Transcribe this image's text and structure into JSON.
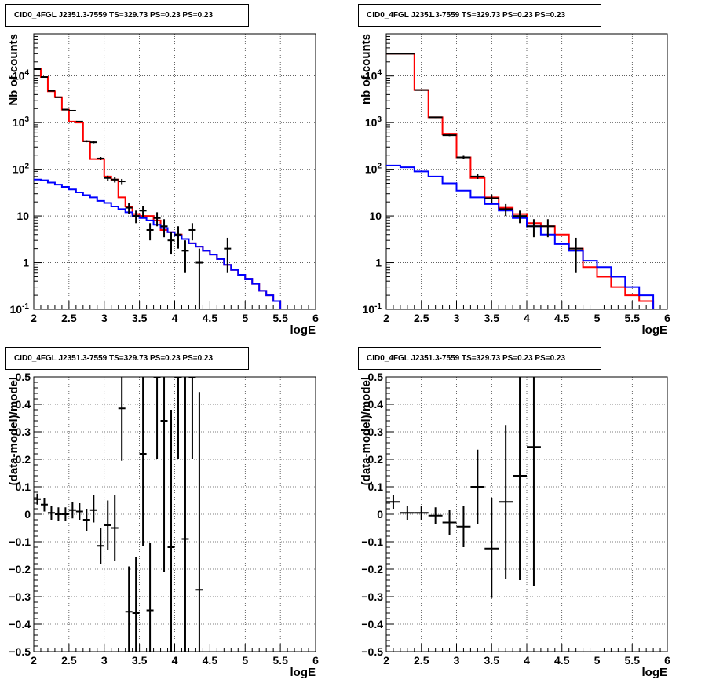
{
  "chart_data": [
    {
      "type": "line",
      "title": "CID0_4FGL J2351.3-7559 TS=329.73 PS=0.23 PS=0.23",
      "xlabel": "logE",
      "ylabel": "Nb of counts",
      "xlim": [
        2,
        6
      ],
      "ylim": [
        0.1,
        80000
      ],
      "yscale": "log",
      "grid": true,
      "x_ticks": [
        "2",
        "2.5",
        "3",
        "3.5",
        "4",
        "4.5",
        "5",
        "5.5",
        "6"
      ],
      "y_ticks": [
        "10",
        "1"
      ],
      "y_ticks_sci": [
        {
          "base": "10",
          "exp": "4"
        },
        {
          "base": "10",
          "exp": "3"
        },
        {
          "base": "10",
          "exp": "2"
        },
        {
          "base": "10",
          "exp": "-1"
        }
      ],
      "series": [
        {
          "kind": "step",
          "color": "#ff0000",
          "edges": [
            2.0,
            2.1,
            2.2,
            2.3,
            2.4,
            2.5,
            2.6,
            2.7,
            2.8,
            2.9,
            3.0,
            3.1,
            3.2,
            3.3,
            3.4,
            3.5,
            3.6,
            3.7,
            3.8,
            3.9,
            4.0,
            4.1,
            4.2,
            4.3,
            4.4,
            4.5,
            4.6,
            4.7,
            4.8,
            4.9,
            5.0,
            5.1,
            5.2,
            5.3,
            5.4,
            5.5,
            5.6,
            5.7,
            5.8,
            5.9,
            6.0
          ],
          "values": [
            14000,
            9500,
            4700,
            3500,
            1900,
            1050,
            1000,
            400,
            165,
            165,
            70,
            60,
            25,
            16,
            11,
            10,
            10,
            8,
            5,
            4.5,
            4,
            3.2,
            2.6,
            2.2,
            1.8,
            1.5,
            1.2,
            0.9,
            0.7,
            0.55,
            0.45,
            0.35,
            0.25,
            0.2,
            0.15,
            0.1,
            0.1,
            0.1,
            0.1,
            0.1
          ]
        },
        {
          "kind": "step",
          "color": "#0000ff",
          "edges": [
            2.0,
            2.1,
            2.2,
            2.3,
            2.4,
            2.5,
            2.6,
            2.7,
            2.8,
            2.9,
            3.0,
            3.1,
            3.2,
            3.3,
            3.4,
            3.5,
            3.6,
            3.7,
            3.8,
            3.9,
            4.0,
            4.1,
            4.2,
            4.3,
            4.4,
            4.5,
            4.6,
            4.7,
            4.8,
            4.9,
            5.0,
            5.1,
            5.2,
            5.3,
            5.4,
            5.5,
            5.6,
            5.7,
            5.8,
            5.9,
            6.0
          ],
          "values": [
            60,
            58,
            52,
            47,
            42,
            37,
            32,
            28,
            25,
            21,
            19,
            16,
            14,
            12,
            10,
            9,
            8,
            6.5,
            5.5,
            4.5,
            3.8,
            3.2,
            2.6,
            2.2,
            1.8,
            1.5,
            1.2,
            0.9,
            0.7,
            0.55,
            0.45,
            0.35,
            0.25,
            0.2,
            0.15,
            0.1,
            0.1,
            0.1,
            0.1,
            0.1
          ]
        },
        {
          "kind": "errorbar",
          "color": "#000000",
          "points": [
            {
              "x": 2.05,
              "y": 14000,
              "lo": 13800,
              "hi": 14200
            },
            {
              "x": 2.15,
              "y": 9500,
              "lo": 9300,
              "hi": 9700
            },
            {
              "x": 2.25,
              "y": 4800,
              "lo": 4700,
              "hi": 4900
            },
            {
              "x": 2.35,
              "y": 3500,
              "lo": 3440,
              "hi": 3560
            },
            {
              "x": 2.45,
              "y": 1900,
              "lo": 1850,
              "hi": 1950
            },
            {
              "x": 2.55,
              "y": 1800,
              "lo": 1750,
              "hi": 1850
            },
            {
              "x": 2.65,
              "y": 1050,
              "lo": 1020,
              "hi": 1080
            },
            {
              "x": 2.75,
              "y": 400,
              "lo": 380,
              "hi": 420
            },
            {
              "x": 2.85,
              "y": 380,
              "lo": 360,
              "hi": 400
            },
            {
              "x": 2.95,
              "y": 170,
              "lo": 157,
              "hi": 183
            },
            {
              "x": 3.05,
              "y": 65,
              "lo": 57,
              "hi": 73
            },
            {
              "x": 3.15,
              "y": 60,
              "lo": 52,
              "hi": 68
            },
            {
              "x": 3.25,
              "y": 55,
              "lo": 48,
              "hi": 62
            },
            {
              "x": 3.35,
              "y": 15,
              "lo": 11,
              "hi": 19
            },
            {
              "x": 3.45,
              "y": 10,
              "lo": 7,
              "hi": 13
            },
            {
              "x": 3.55,
              "y": 13,
              "lo": 9.5,
              "hi": 16.5
            },
            {
              "x": 3.65,
              "y": 5,
              "lo": 3,
              "hi": 7
            },
            {
              "x": 3.75,
              "y": 9,
              "lo": 6,
              "hi": 12
            },
            {
              "x": 3.85,
              "y": 6,
              "lo": 3.5,
              "hi": 8.5
            },
            {
              "x": 3.95,
              "y": 3,
              "lo": 1.5,
              "hi": 4.5
            },
            {
              "x": 4.05,
              "y": 4,
              "lo": 2,
              "hi": 6
            },
            {
              "x": 4.15,
              "y": 1.8,
              "lo": 0.6,
              "hi": 3.0
            },
            {
              "x": 4.25,
              "y": 5,
              "lo": 3,
              "hi": 7
            },
            {
              "x": 4.35,
              "y": 1,
              "lo": 0.1,
              "hi": 2
            },
            {
              "x": 4.75,
              "y": 2,
              "lo": 0.6,
              "hi": 3.4
            }
          ]
        }
      ]
    },
    {
      "type": "line",
      "title": "CID0_4FGL J2351.3-7559 TS=329.73 PS=0.23 PS=0.23",
      "xlabel": "logE",
      "ylabel": "nb of counts",
      "xlim": [
        2,
        6
      ],
      "ylim": [
        0.1,
        80000
      ],
      "yscale": "log",
      "grid": true,
      "x_ticks": [
        "2",
        "2.5",
        "3",
        "3.5",
        "4",
        "4.5",
        "5",
        "5.5",
        "6"
      ],
      "y_ticks": [
        "10",
        "1"
      ],
      "y_ticks_sci": [
        {
          "base": "10",
          "exp": "4"
        },
        {
          "base": "10",
          "exp": "3"
        },
        {
          "base": "10",
          "exp": "2"
        },
        {
          "base": "10",
          "exp": "-1"
        }
      ],
      "series": [
        {
          "kind": "step",
          "color": "#ff0000",
          "edges": [
            2.0,
            2.2,
            2.4,
            2.6,
            2.8,
            3.0,
            3.2,
            3.4,
            3.6,
            3.8,
            4.0,
            4.2,
            4.4,
            4.6,
            4.8,
            5.0,
            5.2,
            5.4,
            5.6,
            5.8,
            6.0
          ],
          "values": [
            30000,
            30000,
            5000,
            1300,
            560,
            180,
            65,
            25,
            15,
            11,
            7,
            6,
            4,
            2,
            0.8,
            0.5,
            0.3,
            0.2,
            0.15,
            0.1
          ]
        },
        {
          "kind": "step",
          "color": "#0000ff",
          "edges": [
            2.0,
            2.2,
            2.4,
            2.6,
            2.8,
            3.0,
            3.2,
            3.4,
            3.6,
            3.8,
            4.0,
            4.2,
            4.4,
            4.6,
            4.8,
            5.0,
            5.2,
            5.4,
            5.6,
            5.8,
            6.0
          ],
          "values": [
            120,
            110,
            90,
            70,
            50,
            35,
            25,
            18,
            13,
            9,
            6,
            4,
            2.5,
            1.8,
            1.1,
            0.8,
            0.5,
            0.3,
            0.2,
            0.1
          ]
        },
        {
          "kind": "errorbar",
          "color": "#000000",
          "points": [
            {
              "x": 2.1,
              "y": 30000,
              "lo": 29800,
              "hi": 30200
            },
            {
              "x": 2.3,
              "y": 30000,
              "lo": 29900,
              "hi": 30100
            },
            {
              "x": 2.5,
              "y": 5000,
              "lo": 4930,
              "hi": 5070
            },
            {
              "x": 2.7,
              "y": 1300,
              "lo": 1260,
              "hi": 1340
            },
            {
              "x": 2.9,
              "y": 540,
              "lo": 515,
              "hi": 565
            },
            {
              "x": 3.1,
              "y": 180,
              "lo": 166,
              "hi": 194
            },
            {
              "x": 3.3,
              "y": 70,
              "lo": 62,
              "hi": 78
            },
            {
              "x": 3.5,
              "y": 24,
              "lo": 19,
              "hi": 29
            },
            {
              "x": 3.7,
              "y": 14,
              "lo": 10,
              "hi": 18
            },
            {
              "x": 3.9,
              "y": 10,
              "lo": 7,
              "hi": 13
            },
            {
              "x": 4.1,
              "y": 6,
              "lo": 3.5,
              "hi": 8.5
            },
            {
              "x": 4.3,
              "y": 6,
              "lo": 3.5,
              "hi": 8.5
            },
            {
              "x": 4.7,
              "y": 2,
              "lo": 0.6,
              "hi": 3.4
            }
          ]
        }
      ]
    },
    {
      "type": "scatter",
      "title": "CID0_4FGL J2351.3-7559 TS=329.73 PS=0.23 PS=0.23",
      "xlabel": "logE",
      "ylabel": "(data-model)/model",
      "xlim": [
        2,
        6
      ],
      "ylim": [
        -0.5,
        0.5
      ],
      "grid": true,
      "x_ticks": [
        "2",
        "2.5",
        "3",
        "3.5",
        "4",
        "4.5",
        "5",
        "5.5",
        "6"
      ],
      "y_ticks": [
        "0.5",
        "0.4",
        "0.3",
        "0.2",
        "0.1",
        "0",
        "−0.1",
        "−0.2",
        "−0.3",
        "−0.4",
        "−0.5"
      ],
      "series": [
        {
          "kind": "errorbar",
          "color": "#000000",
          "points": [
            {
              "x": 2.05,
              "y": 0.055,
              "lo": 0.035,
              "hi": 0.075
            },
            {
              "x": 2.15,
              "y": 0.035,
              "lo": 0.01,
              "hi": 0.06
            },
            {
              "x": 2.25,
              "y": 0.005,
              "lo": -0.02,
              "hi": 0.03
            },
            {
              "x": 2.35,
              "y": 0.0,
              "lo": -0.025,
              "hi": 0.025
            },
            {
              "x": 2.45,
              "y": 0.0,
              "lo": -0.025,
              "hi": 0.025
            },
            {
              "x": 2.55,
              "y": 0.015,
              "lo": -0.015,
              "hi": 0.045
            },
            {
              "x": 2.65,
              "y": 0.01,
              "lo": -0.02,
              "hi": 0.04
            },
            {
              "x": 2.75,
              "y": -0.02,
              "lo": -0.06,
              "hi": 0.02
            },
            {
              "x": 2.85,
              "y": 0.015,
              "lo": -0.03,
              "hi": 0.07
            },
            {
              "x": 2.95,
              "y": -0.115,
              "lo": -0.18,
              "hi": -0.05
            },
            {
              "x": 3.05,
              "y": -0.04,
              "lo": -0.13,
              "hi": 0.05
            },
            {
              "x": 3.15,
              "y": -0.05,
              "lo": -0.17,
              "hi": 0.07
            },
            {
              "x": 3.25,
              "y": 0.385,
              "lo": 0.195,
              "hi": 0.5
            },
            {
              "x": 3.35,
              "y": -0.355,
              "lo": -0.5,
              "hi": -0.19
            },
            {
              "x": 3.45,
              "y": -0.36,
              "lo": -0.5,
              "hi": -0.155
            },
            {
              "x": 3.55,
              "y": 0.22,
              "lo": -0.115,
              "hi": 0.5
            },
            {
              "x": 3.65,
              "y": -0.35,
              "lo": -0.5,
              "hi": -0.105
            },
            {
              "x": 3.75,
              "y": 0.5,
              "lo": 0.2,
              "hi": 0.5
            },
            {
              "x": 3.85,
              "y": 0.34,
              "lo": -0.21,
              "hi": 0.5
            },
            {
              "x": 3.95,
              "y": -0.12,
              "lo": -0.5,
              "hi": 0.38
            },
            {
              "x": 4.05,
              "y": 0.5,
              "lo": 0.2,
              "hi": 0.5
            },
            {
              "x": 4.15,
              "y": -0.09,
              "lo": -0.5,
              "hi": 0.5
            },
            {
              "x": 4.25,
              "y": 0.5,
              "lo": 0.2,
              "hi": 0.5
            },
            {
              "x": 4.35,
              "y": -0.275,
              "lo": -0.5,
              "hi": 0.445
            }
          ]
        }
      ]
    },
    {
      "type": "scatter",
      "title": "CID0_4FGL J2351.3-7559 TS=329.73 PS=0.23 PS=0.23",
      "xlabel": "logE",
      "ylabel": "(data-model)/model",
      "xlim": [
        2,
        6
      ],
      "ylim": [
        -0.5,
        0.5
      ],
      "grid": true,
      "x_ticks": [
        "2",
        "2.5",
        "3",
        "3.5",
        "4",
        "4.5",
        "5",
        "5.5",
        "6"
      ],
      "y_ticks": [
        "0.5",
        "0.4",
        "0.3",
        "0.2",
        "0.1",
        "0",
        "−0.1",
        "−0.2",
        "−0.3",
        "−0.4",
        "−0.5"
      ],
      "series": [
        {
          "kind": "errorbar",
          "color": "#000000",
          "points": [
            {
              "x": 2.1,
              "y": 0.045,
              "lo": 0.02,
              "hi": 0.07
            },
            {
              "x": 2.3,
              "y": 0.005,
              "lo": -0.02,
              "hi": 0.03
            },
            {
              "x": 2.5,
              "y": 0.005,
              "lo": -0.02,
              "hi": 0.03
            },
            {
              "x": 2.7,
              "y": -0.005,
              "lo": -0.035,
              "hi": 0.025
            },
            {
              "x": 2.9,
              "y": -0.03,
              "lo": -0.075,
              "hi": 0.015
            },
            {
              "x": 3.1,
              "y": -0.045,
              "lo": -0.12,
              "hi": 0.03
            },
            {
              "x": 3.3,
              "y": 0.1,
              "lo": -0.035,
              "hi": 0.235
            },
            {
              "x": 3.5,
              "y": -0.125,
              "lo": -0.305,
              "hi": 0.06
            },
            {
              "x": 3.7,
              "y": 0.045,
              "lo": -0.235,
              "hi": 0.325
            },
            {
              "x": 3.9,
              "y": 0.14,
              "lo": -0.24,
              "hi": 0.5
            },
            {
              "x": 4.1,
              "y": 0.245,
              "lo": -0.26,
              "hi": 0.5
            }
          ]
        }
      ]
    }
  ]
}
